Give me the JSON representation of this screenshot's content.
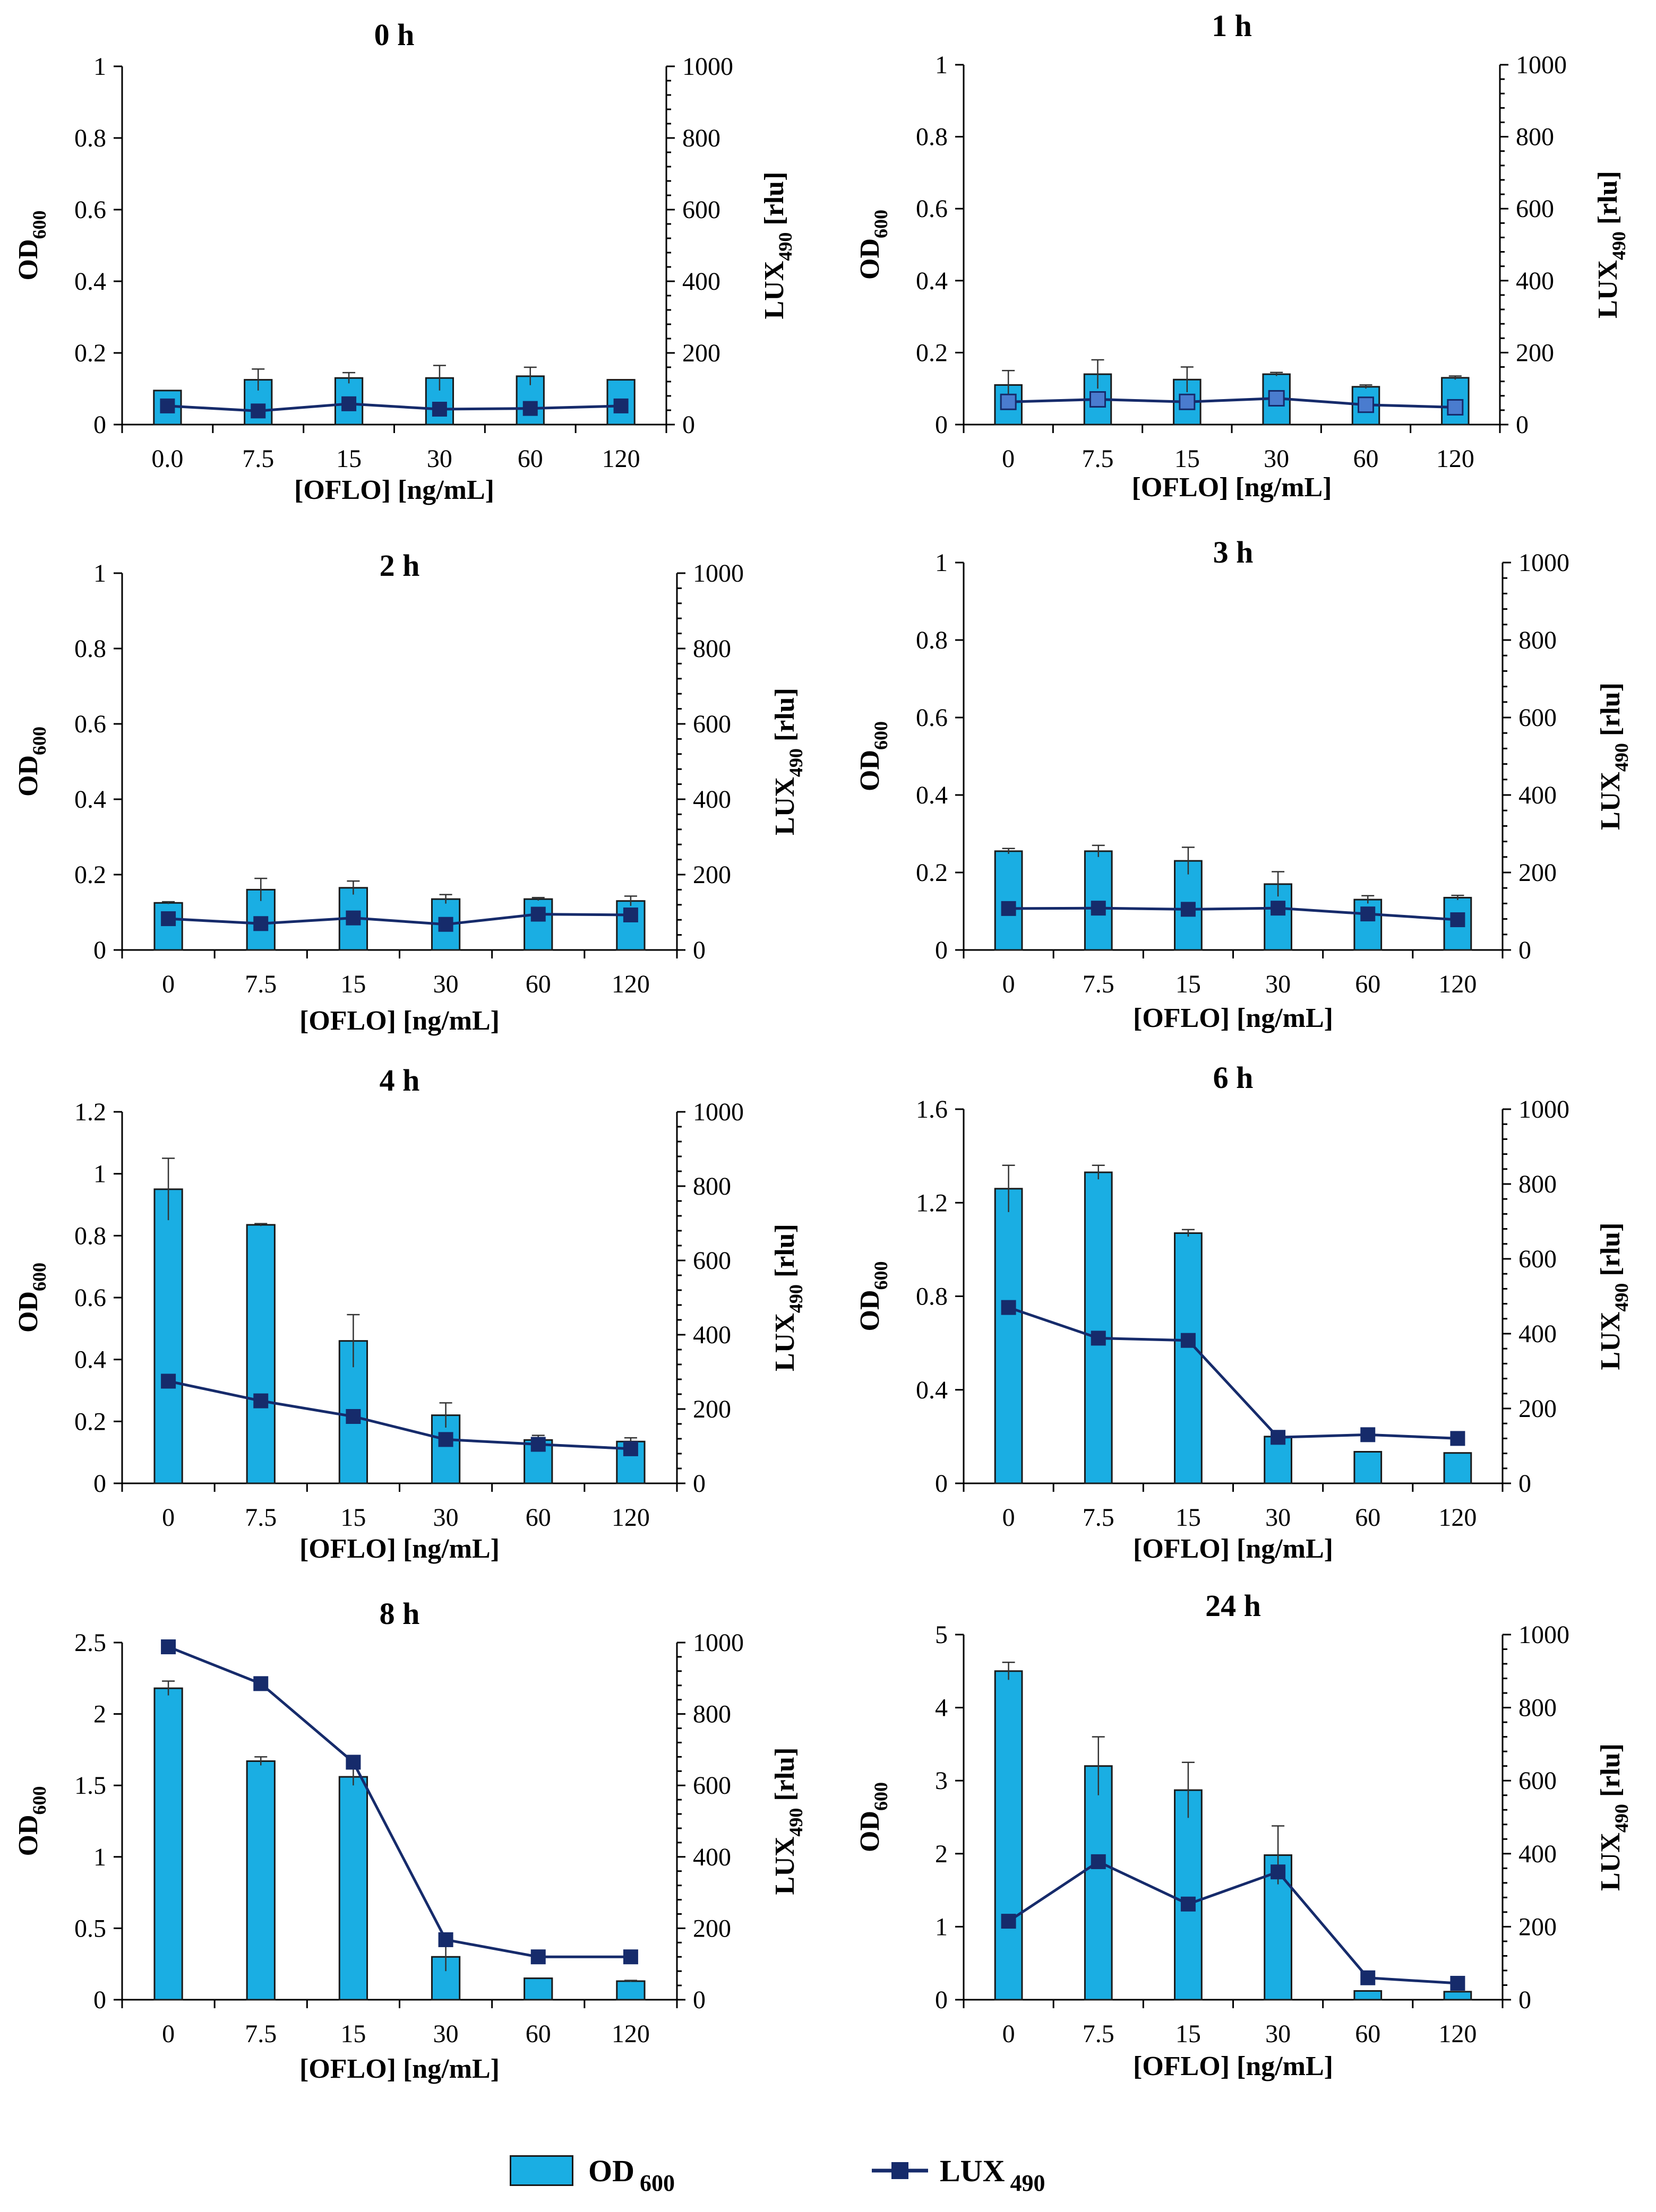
{
  "colors": {
    "bar_fill": "#1aaee3",
    "bar_stroke": "#1a1a1a",
    "line": "#162b6b",
    "marker_light": "#4a7ccf"
  },
  "legend": {
    "od_label": "OD",
    "od_sub": "600",
    "lux_label": "LUX",
    "lux_sub": "490"
  },
  "chart_data": [
    {
      "type": "bar+line",
      "title": "0 h",
      "categories": [
        "0.0",
        "7.5",
        "15",
        "30",
        "60",
        "120"
      ],
      "xlabel": "[OFLO] [ng/mL]",
      "ylabel_left": "OD",
      "ylabel_left_sub": "600",
      "ylabel_right": "LUX",
      "ylabel_right_sub": "490",
      "ylabel_right_unit": "[rlu]",
      "ylim_left": [
        0,
        1
      ],
      "yticks_left": [
        "0",
        "0.2",
        "0.4",
        "0.6",
        "0.8",
        "1"
      ],
      "ylim_right": [
        0,
        1000
      ],
      "yticks_right": [
        "0",
        "200",
        "400",
        "600",
        "800",
        "1000"
      ],
      "series": [
        {
          "name": "OD 600",
          "kind": "bar",
          "values": [
            0.095,
            0.125,
            0.13,
            0.13,
            0.135,
            0.125
          ],
          "errors": [
            0,
            0.03,
            0.015,
            0.035,
            0.025,
            0
          ]
        },
        {
          "name": "LUX 490",
          "kind": "line",
          "values": [
            52,
            38,
            58,
            43,
            45,
            52
          ],
          "marker": "dark"
        }
      ]
    },
    {
      "type": "bar+line",
      "title": "1 h",
      "categories": [
        "0",
        "7.5",
        "15",
        "30",
        "60",
        "120"
      ],
      "xlabel": "[OFLO] [ng/mL]",
      "ylabel_left": "OD",
      "ylabel_left_sub": "600",
      "ylabel_right": "LUX",
      "ylabel_right_sub": "490",
      "ylabel_right_unit": "[rlu]",
      "ylim_left": [
        0,
        1
      ],
      "yticks_left": [
        "0",
        "0.2",
        "0.4",
        "0.6",
        "0.8",
        "1"
      ],
      "ylim_right": [
        0,
        1000
      ],
      "yticks_right": [
        "0",
        "200",
        "400",
        "600",
        "800",
        "1000"
      ],
      "series": [
        {
          "name": "OD 600",
          "kind": "bar",
          "values": [
            0.11,
            0.14,
            0.125,
            0.14,
            0.105,
            0.13
          ],
          "errors": [
            0.04,
            0.04,
            0.035,
            0.005,
            0.005,
            0.005
          ]
        },
        {
          "name": "LUX 490",
          "kind": "line",
          "values": [
            63,
            70,
            63,
            73,
            55,
            48
          ],
          "marker": "light"
        }
      ]
    },
    {
      "type": "bar+line",
      "title": "2 h",
      "categories": [
        "0",
        "7.5",
        "15",
        "30",
        "60",
        "120"
      ],
      "xlabel": "[OFLO] [ng/mL]",
      "ylabel_left": "OD",
      "ylabel_left_sub": "600",
      "ylabel_right": "LUX",
      "ylabel_right_sub": "490",
      "ylabel_right_unit": "[rlu]",
      "ylim_left": [
        0,
        1
      ],
      "yticks_left": [
        "0",
        "0.2",
        "0.4",
        "0.6",
        "0.8",
        "1"
      ],
      "ylim_right": [
        0,
        1000
      ],
      "yticks_right": [
        "0",
        "200",
        "400",
        "600",
        "800",
        "1000"
      ],
      "series": [
        {
          "name": "OD 600",
          "kind": "bar",
          "values": [
            0.125,
            0.16,
            0.165,
            0.135,
            0.135,
            0.13
          ],
          "errors": [
            0.003,
            0.03,
            0.018,
            0.012,
            0.004,
            0.013
          ]
        },
        {
          "name": "LUX 490",
          "kind": "line",
          "values": [
            83,
            70,
            85,
            68,
            95,
            93
          ],
          "marker": "dark"
        }
      ]
    },
    {
      "type": "bar+line",
      "title": "3 h",
      "categories": [
        "0",
        "7.5",
        "15",
        "30",
        "60",
        "120"
      ],
      "xlabel": "[OFLO] [ng/mL]",
      "ylabel_left": "OD",
      "ylabel_left_sub": "600",
      "ylabel_right": "LUX",
      "ylabel_right_sub": "490",
      "ylabel_right_unit": "[rlu]",
      "ylim_left": [
        0,
        1
      ],
      "yticks_left": [
        "0",
        "0.2",
        "0.4",
        "0.6",
        "0.8",
        "1"
      ],
      "ylim_right": [
        0,
        1000
      ],
      "yticks_right": [
        "0",
        "200",
        "400",
        "600",
        "800",
        "1000"
      ],
      "series": [
        {
          "name": "OD 600",
          "kind": "bar",
          "values": [
            0.255,
            0.255,
            0.23,
            0.17,
            0.13,
            0.135
          ],
          "errors": [
            0.007,
            0.015,
            0.035,
            0.032,
            0.01,
            0.006
          ]
        },
        {
          "name": "LUX 490",
          "kind": "line",
          "values": [
            107,
            108,
            105,
            108,
            93,
            78
          ],
          "marker": "dark"
        }
      ]
    },
    {
      "type": "bar+line",
      "title": "4 h",
      "categories": [
        "0",
        "7.5",
        "15",
        "30",
        "60",
        "120"
      ],
      "xlabel": "[OFLO] [ng/mL]",
      "ylabel_left": "OD",
      "ylabel_left_sub": "600",
      "ylabel_right": "LUX",
      "ylabel_right_sub": "490",
      "ylabel_right_unit": "[rlu]",
      "ylim_left": [
        0,
        1.2
      ],
      "yticks_left": [
        "0",
        "0.2",
        "0.4",
        "0.6",
        "0.8",
        "1",
        "1.2"
      ],
      "ylim_right": [
        0,
        1000
      ],
      "yticks_right": [
        "0",
        "200",
        "400",
        "600",
        "800",
        "1000"
      ],
      "series": [
        {
          "name": "OD 600",
          "kind": "bar",
          "values": [
            0.95,
            0.835,
            0.46,
            0.22,
            0.14,
            0.135
          ],
          "errors": [
            0.1,
            0.004,
            0.085,
            0.04,
            0.015,
            0.012
          ]
        },
        {
          "name": "LUX 490",
          "kind": "line",
          "values": [
            275,
            222,
            180,
            118,
            105,
            93
          ],
          "marker": "dark"
        }
      ]
    },
    {
      "type": "bar+line",
      "title": "6 h",
      "categories": [
        "0",
        "7.5",
        "15",
        "30",
        "60",
        "120"
      ],
      "xlabel": "[OFLO] [ng/mL]",
      "ylabel_left": "OD",
      "ylabel_left_sub": "600",
      "ylabel_right": "LUX",
      "ylabel_right_sub": "490",
      "ylabel_right_unit": "[rlu]",
      "ylim_left": [
        0,
        1.6
      ],
      "yticks_left": [
        "0",
        "0.4",
        "0.8",
        "1.2",
        "1.6"
      ],
      "ylim_right": [
        0,
        1000
      ],
      "yticks_right": [
        "0",
        "200",
        "400",
        "600",
        "800",
        "1000"
      ],
      "series": [
        {
          "name": "OD 600",
          "kind": "bar",
          "values": [
            1.26,
            1.33,
            1.07,
            0.2,
            0.135,
            0.13
          ],
          "errors": [
            0.1,
            0.03,
            0.015,
            0,
            0,
            0
          ]
        },
        {
          "name": "LUX 490",
          "kind": "line",
          "values": [
            470,
            388,
            382,
            123,
            130,
            120
          ],
          "marker": "dark"
        }
      ]
    },
    {
      "type": "bar+line",
      "title": "8 h",
      "categories": [
        "0",
        "7.5",
        "15",
        "30",
        "60",
        "120"
      ],
      "xlabel": "[OFLO] [ng/mL]",
      "ylabel_left": "OD",
      "ylabel_left_sub": "600",
      "ylabel_right": "LUX",
      "ylabel_right_sub": "490",
      "ylabel_right_unit": "[rlu]",
      "ylim_left": [
        0,
        2.5
      ],
      "yticks_left": [
        "0",
        "0.5",
        "1",
        "1.5",
        "2",
        "2.5"
      ],
      "ylim_right": [
        0,
        1000
      ],
      "yticks_right": [
        "0",
        "200",
        "400",
        "600",
        "800",
        "1000"
      ],
      "series": [
        {
          "name": "OD 600",
          "kind": "bar",
          "values": [
            2.18,
            1.67,
            1.56,
            0.3,
            0.15,
            0.13
          ],
          "errors": [
            0.05,
            0.03,
            0.06,
            0.1,
            0,
            0.005
          ]
        },
        {
          "name": "LUX 490",
          "kind": "line",
          "values": [
            988,
            885,
            665,
            168,
            120,
            120
          ],
          "marker": "dark"
        }
      ]
    },
    {
      "type": "bar+line",
      "title": "24 h",
      "categories": [
        "0",
        "7.5",
        "15",
        "30",
        "60",
        "120"
      ],
      "xlabel": "[OFLO] [ng/mL]",
      "ylabel_left": "OD",
      "ylabel_left_sub": "600",
      "ylabel_right": "LUX",
      "ylabel_right_sub": "490",
      "ylabel_right_unit": "[rlu]",
      "ylim_left": [
        0,
        5
      ],
      "yticks_left": [
        "0",
        "1",
        "2",
        "3",
        "4",
        "5"
      ],
      "ylim_right": [
        0,
        1000
      ],
      "yticks_right": [
        "0",
        "200",
        "400",
        "600",
        "800",
        "1000"
      ],
      "series": [
        {
          "name": "OD 600",
          "kind": "bar",
          "values": [
            4.5,
            3.2,
            2.87,
            1.98,
            0.12,
            0.11
          ],
          "errors": [
            0.12,
            0.4,
            0.38,
            0.4,
            0,
            0
          ]
        },
        {
          "name": "LUX 490",
          "kind": "line",
          "values": [
            215,
            378,
            262,
            350,
            60,
            45
          ],
          "marker": "dark"
        }
      ]
    }
  ]
}
